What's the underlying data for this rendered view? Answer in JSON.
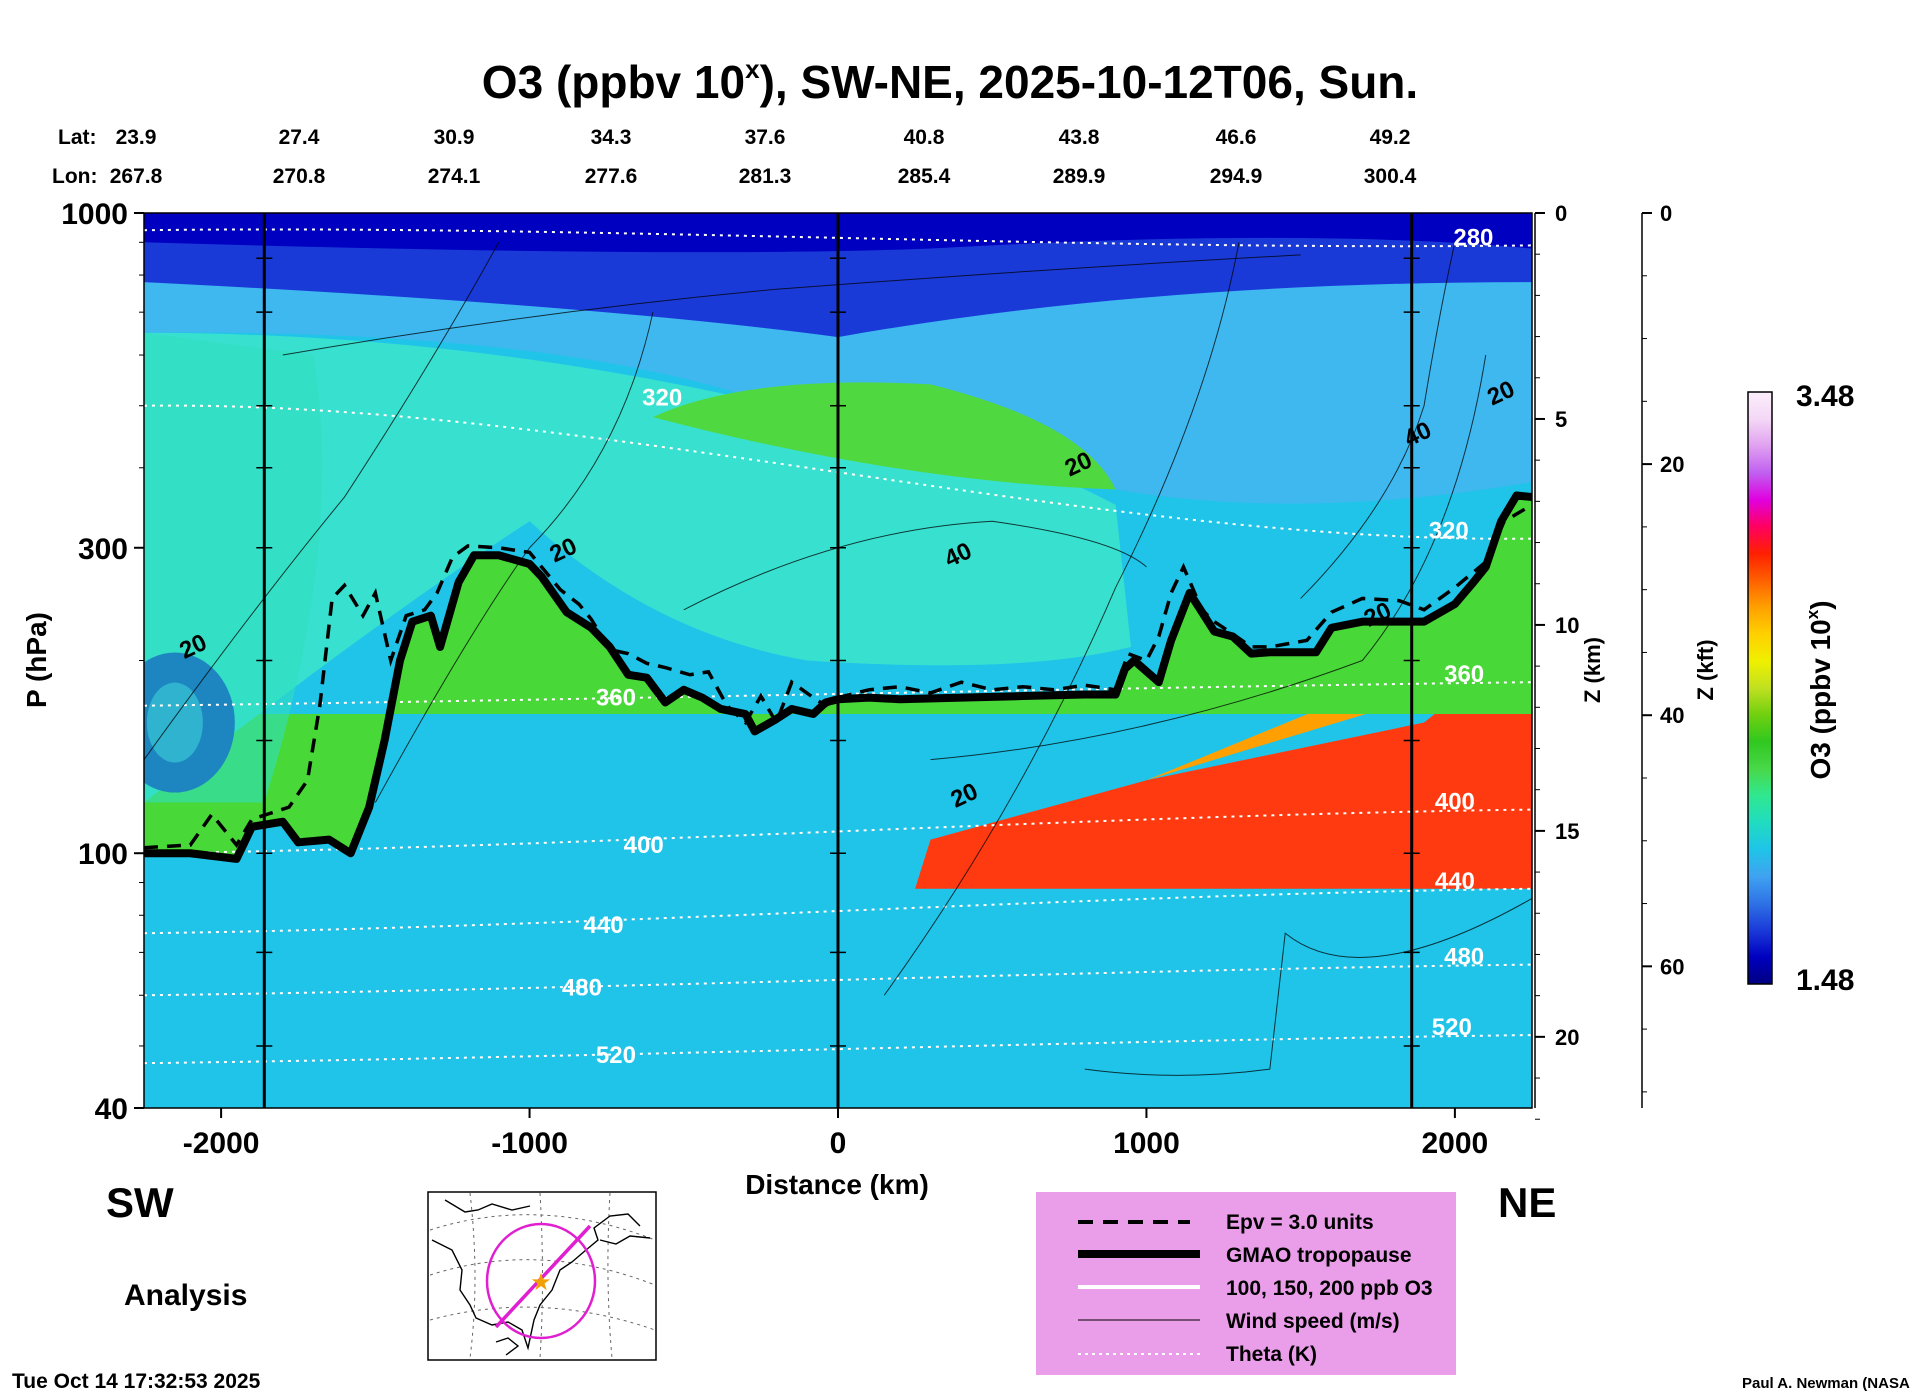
{
  "chart_data": {
    "type": "heatmap",
    "title_prefix": "O3 (ppbv 10",
    "title_sup": "x",
    "title_suffix": "), SW-NE, 2025-10-12T06, Sun.",
    "lat_label": "Lat:",
    "lon_label": "Lon:",
    "lat_values": [
      "23.9",
      "27.4",
      "30.9",
      "34.3",
      "37.6",
      "40.8",
      "43.8",
      "46.6",
      "49.2"
    ],
    "lon_values": [
      "267.8",
      "270.8",
      "274.1",
      "277.6",
      "281.3",
      "285.4",
      "289.9",
      "294.9",
      "300.4"
    ],
    "xlabel": "Distance (km)",
    "xlim": [
      -2250,
      2250
    ],
    "x_ticks": [
      -2000,
      -1000,
      0,
      1000,
      2000
    ],
    "x_tick_labels": [
      "-2000",
      "-1000",
      "0",
      "1000",
      "2000"
    ],
    "section_markers_km": [
      -1860,
      0,
      1860
    ],
    "ylabel": "P (hPa)",
    "ylim": [
      1000,
      40
    ],
    "p_ticks": [
      40,
      100,
      300,
      1000
    ],
    "p_tick_labels": [
      "40",
      "100",
      "300",
      "1000"
    ],
    "z_km_label": "Z (km)",
    "z_km_ticks": [
      0,
      5,
      10,
      15,
      20
    ],
    "z_km_labels": [
      "0",
      "5",
      "10",
      "15",
      "20"
    ],
    "z_kft_label": "Z (kft)",
    "z_kft_ticks": [
      0,
      20,
      40,
      60
    ],
    "z_kft_labels": [
      "0",
      "20",
      "40",
      "60"
    ],
    "colorbar": {
      "label_prefix": "O3 (ppbv 10",
      "label_sup": "x",
      "label_suffix": ")",
      "min_label": "1.48",
      "max_label": "3.48",
      "min": 1.48,
      "max": 3.48,
      "colors": [
        "#000080",
        "#0000c0",
        "#1a3ad8",
        "#2f72e6",
        "#3fa2f0",
        "#1fc4e8",
        "#20dcc0",
        "#30e890",
        "#48d848",
        "#30c820",
        "#70d010",
        "#c0e020",
        "#f0f000",
        "#ffd000",
        "#ffa000",
        "#ff6000",
        "#ff2000",
        "#ff0060",
        "#e000e0",
        "#c060f0",
        "#e0a0f0",
        "#f4d8f6",
        "#fbeefb"
      ]
    },
    "theta_labels": [
      {
        "value": "520",
        "x_km": -720,
        "p": 47
      },
      {
        "value": "520",
        "x_km": 1990,
        "p": 52
      },
      {
        "value": "480",
        "x_km": -830,
        "p": 60
      },
      {
        "value": "480",
        "x_km": 2030,
        "p": 67
      },
      {
        "value": "440",
        "x_km": -760,
        "p": 75
      },
      {
        "value": "440",
        "x_km": 2000,
        "p": 88
      },
      {
        "value": "400",
        "x_km": -630,
        "p": 100
      },
      {
        "value": "400",
        "x_km": 2000,
        "p": 117
      },
      {
        "value": "360",
        "x_km": -720,
        "p": 170
      },
      {
        "value": "360",
        "x_km": 2030,
        "p": 185
      },
      {
        "value": "320",
        "x_km": -570,
        "p": 500
      },
      {
        "value": "320",
        "x_km": 1980,
        "p": 310
      },
      {
        "value": "280",
        "x_km": 2060,
        "p": 890
      }
    ],
    "wind_labels": [
      {
        "value": "20",
        "x_km": -2080,
        "p": 205
      },
      {
        "value": "20",
        "x_km": -880,
        "p": 290
      },
      {
        "value": "20",
        "x_km": 420,
        "p": 120
      },
      {
        "value": "40",
        "x_km": 400,
        "p": 285
      },
      {
        "value": "20",
        "x_km": 790,
        "p": 395
      },
      {
        "value": "20",
        "x_km": 1760,
        "p": 230
      },
      {
        "value": "40",
        "x_km": 1890,
        "p": 440
      },
      {
        "value": "20",
        "x_km": 2160,
        "p": 510
      }
    ],
    "tropopause": [
      [
        -2250,
        100
      ],
      [
        -2100,
        100
      ],
      [
        -1950,
        98
      ],
      [
        -1900,
        110
      ],
      [
        -1800,
        112
      ],
      [
        -1750,
        104
      ],
      [
        -1650,
        105
      ],
      [
        -1580,
        100
      ],
      [
        -1520,
        118
      ],
      [
        -1470,
        150
      ],
      [
        -1420,
        200
      ],
      [
        -1380,
        230
      ],
      [
        -1320,
        235
      ],
      [
        -1290,
        210
      ],
      [
        -1230,
        265
      ],
      [
        -1180,
        292
      ],
      [
        -1100,
        292
      ],
      [
        -1000,
        283
      ],
      [
        -960,
        270
      ],
      [
        -880,
        238
      ],
      [
        -800,
        225
      ],
      [
        -740,
        210
      ],
      [
        -680,
        190
      ],
      [
        -620,
        188
      ],
      [
        -560,
        172
      ],
      [
        -500,
        180
      ],
      [
        -440,
        175
      ],
      [
        -380,
        168
      ],
      [
        -300,
        165
      ],
      [
        -270,
        155
      ],
      [
        -200,
        162
      ],
      [
        -150,
        168
      ],
      [
        -80,
        165
      ],
      [
        -40,
        172
      ],
      [
        0,
        174
      ],
      [
        100,
        175
      ],
      [
        200,
        174
      ],
      [
        400,
        175
      ],
      [
        600,
        176
      ],
      [
        800,
        177
      ],
      [
        900,
        177
      ],
      [
        930,
        194
      ],
      [
        960,
        200
      ],
      [
        1040,
        185
      ],
      [
        1080,
        215
      ],
      [
        1140,
        255
      ],
      [
        1180,
        238
      ],
      [
        1220,
        222
      ],
      [
        1280,
        218
      ],
      [
        1340,
        205
      ],
      [
        1400,
        206
      ],
      [
        1550,
        206
      ],
      [
        1600,
        225
      ],
      [
        1700,
        230
      ],
      [
        1900,
        230
      ],
      [
        2000,
        245
      ],
      [
        2060,
        265
      ],
      [
        2100,
        280
      ],
      [
        2150,
        330
      ],
      [
        2200,
        362
      ],
      [
        2250,
        360
      ]
    ],
    "epv": [
      [
        -2250,
        102
      ],
      [
        -2100,
        103
      ],
      [
        -2030,
        115
      ],
      [
        -1950,
        103
      ],
      [
        -1900,
        113
      ],
      [
        -1780,
        118
      ],
      [
        -1720,
        130
      ],
      [
        -1680,
        170
      ],
      [
        -1640,
        250
      ],
      [
        -1600,
        262
      ],
      [
        -1540,
        235
      ],
      [
        -1500,
        255
      ],
      [
        -1450,
        200
      ],
      [
        -1400,
        235
      ],
      [
        -1340,
        240
      ],
      [
        -1300,
        255
      ],
      [
        -1250,
        290
      ],
      [
        -1200,
        302
      ],
      [
        -1100,
        300
      ],
      [
        -1000,
        295
      ],
      [
        -900,
        258
      ],
      [
        -840,
        245
      ],
      [
        -800,
        232
      ],
      [
        -740,
        208
      ],
      [
        -680,
        205
      ],
      [
        -620,
        198
      ],
      [
        -560,
        195
      ],
      [
        -480,
        190
      ],
      [
        -420,
        192
      ],
      [
        -360,
        170
      ],
      [
        -300,
        160
      ],
      [
        -250,
        176
      ],
      [
        -200,
        160
      ],
      [
        -150,
        185
      ],
      [
        -80,
        175
      ],
      [
        -40,
        170
      ],
      [
        0,
        175
      ],
      [
        100,
        180
      ],
      [
        200,
        182
      ],
      [
        300,
        178
      ],
      [
        400,
        185
      ],
      [
        500,
        180
      ],
      [
        600,
        182
      ],
      [
        700,
        180
      ],
      [
        800,
        183
      ],
      [
        900,
        180
      ],
      [
        940,
        205
      ],
      [
        1000,
        200
      ],
      [
        1040,
        218
      ],
      [
        1080,
        255
      ],
      [
        1120,
        280
      ],
      [
        1180,
        240
      ],
      [
        1220,
        230
      ],
      [
        1280,
        220
      ],
      [
        1340,
        210
      ],
      [
        1400,
        210
      ],
      [
        1520,
        215
      ],
      [
        1600,
        238
      ],
      [
        1700,
        250
      ],
      [
        1820,
        248
      ],
      [
        1900,
        240
      ],
      [
        2000,
        260
      ],
      [
        2100,
        285
      ],
      [
        2160,
        330
      ],
      [
        2250,
        350
      ]
    ],
    "legend": [
      {
        "label": "Epv = 3.0 units",
        "style": "dashed"
      },
      {
        "label": "GMAO tropopause",
        "style": "thick"
      },
      {
        "label": "100, 150, 200 ppb O3",
        "style": "white"
      },
      {
        "label": "Wind speed (m/s)",
        "style": "thin"
      },
      {
        "label": "Theta (K)",
        "style": "dotted"
      }
    ],
    "legend_background": "#ea9de9",
    "left_direction": "SW",
    "right_direction": "NE",
    "analysis_label": "Analysis",
    "timestamp": "Tue Oct 14 17:32:53 2025",
    "credit": "Paul A. Newman (NASA"
  }
}
